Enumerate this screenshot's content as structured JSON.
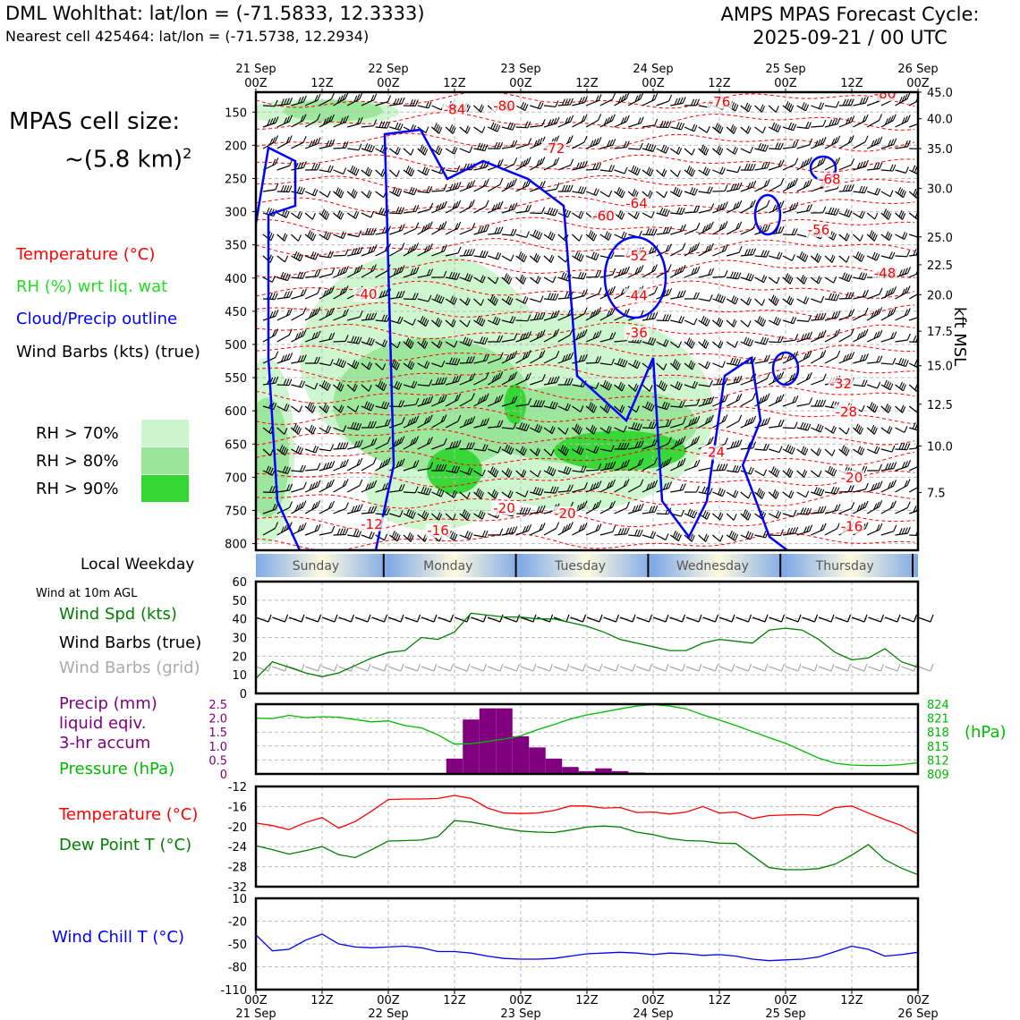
{
  "header": {
    "title_left": "DML Wohlthat: lat/lon = (-71.5833, 12.3333)",
    "subtitle_left": "Nearest cell 425464: lat/lon = (-71.5738, 12.2934)",
    "title_right_1": "AMPS MPAS Forecast Cycle:",
    "title_right_2": "2025-09-21 / 00 UTC"
  },
  "legend": {
    "cell_size_1": "MPAS cell size:",
    "cell_size_2": "~(5.8 km)",
    "cell_size_sup": "2",
    "temperature": "Temperature (°C)",
    "rh": "RH (%) wrt liq. wat",
    "cloud": "Cloud/Precip outline",
    "barbs": "Wind Barbs (kts) (true)",
    "rh70": "RH > 70%",
    "rh80": "RH > 80%",
    "rh90": "RH > 90%",
    "weekday_title": "Local Weekday",
    "wind10": "Wind at 10m AGL",
    "wind_spd": "Wind Spd (kts)",
    "wind_barbs_true": "Wind Barbs (true)",
    "wind_barbs_grid": "Wind Barbs (grid)",
    "precip_1": "Precip (mm)",
    "precip_2": "liquid eqiv.",
    "precip_3": "3-hr accum",
    "pressure": "Pressure (hPa)",
    "temp2": "Temperature (°C)",
    "dewpoint": "Dew Point T (°C)",
    "windchill": "Wind Chill T (°C)",
    "right_axis_label": "kft MSL",
    "hpa_label": "(hPa)"
  },
  "colors": {
    "temperature": "#ff0000",
    "rh": "#22cc22",
    "cloud": "#0000ff",
    "rh70": "#ccf7cc",
    "rh80": "#99e699",
    "rh90": "#33d633",
    "wind_spd": "#008000",
    "precip": "#800080",
    "pressure": "#00bb00",
    "windchill": "#0000ff",
    "grid_barbs": "#aaaaaa"
  },
  "time_axis": {
    "top_dates": [
      "21 Sep",
      "22 Sep",
      "23 Sep",
      "24 Sep",
      "25 Sep",
      "26 Sep"
    ],
    "hour_labels": [
      "00Z",
      "12Z",
      "00Z",
      "12Z",
      "00Z",
      "12Z",
      "00Z",
      "12Z",
      "00Z",
      "12Z",
      "00Z"
    ],
    "weekdays": [
      "Sunday",
      "Monday",
      "Tuesday",
      "Wednesday",
      "Thursday"
    ]
  },
  "chart_data": [
    {
      "type": "heatmap",
      "name": "cross-section",
      "y_pressure_ticks": [
        150,
        200,
        250,
        300,
        350,
        400,
        450,
        500,
        550,
        600,
        650,
        700,
        750,
        800
      ],
      "y_pressure_range": [
        120,
        810
      ],
      "y_right_kft": [
        "45.0",
        "40.0",
        "35.0",
        "30.0",
        "25.0",
        "22.5",
        "20.0",
        "17.5",
        "15.0",
        "12.5",
        "10.0",
        "7.5"
      ],
      "y_right_kft_pressure": [
        120,
        160,
        205,
        265,
        338,
        380,
        425,
        480,
        532,
        590,
        653,
        723
      ],
      "x_range_hours": [
        0,
        120
      ],
      "temperature_labels": [
        {
          "text": "-84",
          "h": 36,
          "p": 152
        },
        {
          "text": "-80",
          "h": 45,
          "p": 146
        },
        {
          "text": "-76",
          "h": 84,
          "p": 140
        },
        {
          "text": "-80",
          "h": 114,
          "p": 128
        },
        {
          "text": "-72",
          "h": 54,
          "p": 210
        },
        {
          "text": "-68",
          "h": 104,
          "p": 257
        },
        {
          "text": "-64",
          "h": 69,
          "p": 293
        },
        {
          "text": "-60",
          "h": 63,
          "p": 312
        },
        {
          "text": "-56",
          "h": 102,
          "p": 333
        },
        {
          "text": "-52",
          "h": 69,
          "p": 372
        },
        {
          "text": "-48",
          "h": 114,
          "p": 398
        },
        {
          "text": "-44",
          "h": 69,
          "p": 432
        },
        {
          "text": "-40",
          "h": 20,
          "p": 430
        },
        {
          "text": "-36",
          "h": 69,
          "p": 488
        },
        {
          "text": "-32",
          "h": 106,
          "p": 565
        },
        {
          "text": "-28",
          "h": 107,
          "p": 607
        },
        {
          "text": "-24",
          "h": 83,
          "p": 668
        },
        {
          "text": "-20",
          "h": 108,
          "p": 706
        },
        {
          "text": "-20",
          "h": 45,
          "p": 752
        },
        {
          "text": "-20",
          "h": 56,
          "p": 760
        },
        {
          "text": "-16",
          "h": 108,
          "p": 780
        },
        {
          "text": "-16",
          "h": 33,
          "p": 786
        },
        {
          "text": "-12",
          "h": 21,
          "p": 776
        }
      ],
      "rh70_blobs": [
        {
          "h": 12,
          "p": 150,
          "rh": 14,
          "rp": 20
        },
        {
          "h": 2,
          "p": 660,
          "rh": 5,
          "rp": 140
        },
        {
          "h": 30,
          "p": 520,
          "rh": 22,
          "rp": 160
        },
        {
          "h": 58,
          "p": 600,
          "rh": 25,
          "rp": 150
        },
        {
          "h": 32,
          "p": 720,
          "rh": 12,
          "rp": 60
        }
      ],
      "rh80_blobs": [
        {
          "h": 14,
          "p": 148,
          "rh": 9,
          "rp": 16
        },
        {
          "h": 2,
          "p": 670,
          "rh": 4,
          "rp": 90
        },
        {
          "h": 32,
          "p": 590,
          "rh": 18,
          "rp": 100
        },
        {
          "h": 60,
          "p": 620,
          "rh": 20,
          "rp": 60
        }
      ],
      "rh90_blobs": [
        {
          "h": 36,
          "p": 690,
          "rh": 5,
          "rp": 35
        },
        {
          "h": 66,
          "p": 660,
          "rh": 12,
          "rp": 30
        },
        {
          "h": 47,
          "p": 590,
          "rh": 2,
          "rp": 30
        }
      ]
    },
    {
      "type": "line",
      "name": "wind-10m",
      "ylim": [
        0,
        60
      ],
      "yticks": [
        0,
        10,
        20,
        30,
        40,
        50,
        60
      ],
      "x_hours": [
        0,
        3,
        6,
        9,
        12,
        15,
        18,
        21,
        24,
        27,
        30,
        33,
        36,
        39,
        42,
        45,
        48,
        51,
        54,
        57,
        60,
        63,
        66,
        69,
        72,
        75,
        78,
        81,
        84,
        87,
        90,
        93,
        96,
        99,
        102,
        105,
        108,
        111,
        114,
        117,
        120
      ],
      "wind_speed": [
        8,
        17,
        14,
        11,
        9,
        11,
        15,
        19,
        22,
        23,
        30,
        29,
        33,
        43,
        42,
        41,
        41,
        40,
        40,
        38,
        36,
        33,
        29,
        27,
        25,
        23,
        23,
        27,
        29,
        28,
        27,
        34,
        35,
        34,
        29,
        22,
        18,
        19,
        24,
        17,
        14
      ]
    },
    {
      "type": "bar",
      "name": "precip-pressure",
      "precip_ylim": [
        0,
        2.5
      ],
      "precip_yticks": [
        "0",
        "0.5",
        "1.0",
        "1.5",
        "2.0",
        "2.5"
      ],
      "pressure_ylim": [
        809,
        824
      ],
      "pressure_yticks": [
        "809",
        "812",
        "815",
        "818",
        "821",
        "824"
      ],
      "precip_x_hours": [
        36,
        39,
        42,
        45,
        48,
        51,
        54,
        57,
        60,
        63,
        66,
        69,
        72
      ],
      "precip_mm": [
        0.55,
        1.95,
        2.35,
        2.35,
        1.35,
        0.95,
        0.55,
        0.25,
        0.1,
        0.2,
        0.1,
        0.05,
        0.02
      ],
      "pressure_x_hours": [
        0,
        3,
        6,
        9,
        12,
        15,
        18,
        21,
        24,
        27,
        30,
        33,
        36,
        39,
        42,
        45,
        48,
        51,
        54,
        57,
        60,
        63,
        66,
        69,
        72,
        75,
        78,
        81,
        84,
        87,
        90,
        93,
        96,
        99,
        102,
        105,
        108,
        111,
        114,
        117,
        120
      ],
      "pressure_hpa": [
        821.0,
        820.9,
        821.6,
        821.1,
        821.3,
        821.2,
        820.7,
        820.2,
        820.4,
        819.4,
        818.9,
        817.4,
        815.4,
        815.5,
        816.0,
        816.5,
        817.2,
        818.5,
        819.6,
        820.8,
        821.7,
        822.3,
        823.0,
        823.6,
        823.9,
        823.6,
        823.0,
        821.7,
        820.6,
        819.4,
        818.1,
        816.8,
        815.6,
        814.0,
        812.4,
        811.3,
        810.9,
        810.8,
        810.8,
        811.0,
        811.4
      ]
    },
    {
      "type": "line",
      "name": "temperature-dewpoint",
      "ylim": [
        -32,
        -12
      ],
      "yticks": [
        -32,
        -28,
        -24,
        -20,
        -16,
        -12
      ],
      "x_hours": [
        0,
        3,
        6,
        9,
        12,
        15,
        18,
        21,
        24,
        27,
        30,
        33,
        36,
        39,
        42,
        45,
        48,
        51,
        54,
        57,
        60,
        63,
        66,
        69,
        72,
        75,
        78,
        81,
        84,
        87,
        90,
        93,
        96,
        99,
        102,
        105,
        108,
        111,
        114,
        117,
        120
      ],
      "temperature": [
        -19.3,
        -19.8,
        -20.6,
        -19.2,
        -18.2,
        -20.3,
        -19.0,
        -16.9,
        -14.6,
        -14.5,
        -14.5,
        -14.4,
        -13.8,
        -14.4,
        -16.3,
        -17.3,
        -17.4,
        -17.3,
        -16.8,
        -15.9,
        -15.9,
        -16.3,
        -16.2,
        -17.2,
        -17.1,
        -17.5,
        -17.1,
        -16.0,
        -17.3,
        -17.1,
        -18.4,
        -17.8,
        -17.7,
        -17.6,
        -17.8,
        -16.2,
        -15.9,
        -17.3,
        -18.6,
        -19.8,
        -21.5
      ],
      "dew_point": [
        -23.8,
        -24.6,
        -25.5,
        -24.8,
        -24.0,
        -25.6,
        -26.2,
        -24.6,
        -22.9,
        -22.8,
        -22.7,
        -22.0,
        -18.8,
        -19.1,
        -19.7,
        -20.4,
        -20.9,
        -21.1,
        -21.2,
        -20.7,
        -20.1,
        -19.9,
        -20.1,
        -21.1,
        -21.6,
        -22.4,
        -22.8,
        -22.9,
        -23.3,
        -23.4,
        -25.8,
        -28.2,
        -28.6,
        -28.6,
        -28.4,
        -27.5,
        -25.7,
        -23.6,
        -26.6,
        -28.3,
        -29.6
      ]
    },
    {
      "type": "line",
      "name": "wind-chill",
      "ylim": [
        -110,
        10
      ],
      "yticks": [
        -110,
        -80,
        -50,
        -20,
        10
      ],
      "x_hours": [
        0,
        3,
        6,
        9,
        12,
        15,
        18,
        21,
        24,
        27,
        30,
        33,
        36,
        39,
        42,
        45,
        48,
        51,
        54,
        57,
        60,
        63,
        66,
        69,
        72,
        75,
        78,
        81,
        84,
        87,
        90,
        93,
        96,
        99,
        102,
        105,
        108,
        111,
        114,
        117,
        120
      ],
      "wind_chill": [
        -38,
        -59,
        -57,
        -45,
        -37,
        -50,
        -54,
        -55,
        -54,
        -53,
        -55,
        -60,
        -60,
        -62,
        -66,
        -69,
        -70,
        -70,
        -69,
        -66,
        -63,
        -62,
        -61,
        -62,
        -64,
        -62,
        -63,
        -65,
        -64,
        -66,
        -70,
        -72,
        -71,
        -70,
        -67,
        -60,
        -53,
        -57,
        -66,
        -64,
        -61
      ]
    }
  ]
}
